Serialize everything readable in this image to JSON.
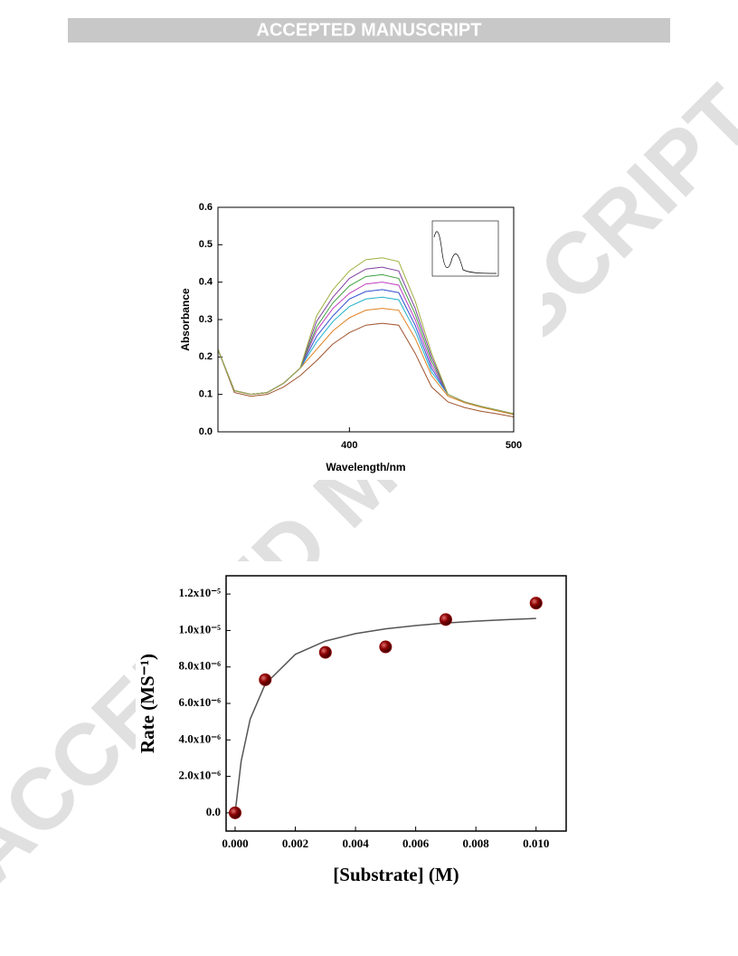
{
  "header": {
    "title": "ACCEPTED MANUSCRIPT"
  },
  "watermark": "ACCEPTED MANUSCRIPT",
  "chart_data": [
    {
      "type": "line",
      "x_label": "Wavelength/nm",
      "y_label": "Absorbance",
      "x": [
        320,
        330,
        340,
        350,
        360,
        370,
        380,
        390,
        400,
        410,
        420,
        430,
        440,
        450,
        460,
        470,
        480,
        490,
        500
      ],
      "xlim": [
        320,
        500
      ],
      "xticks": [
        400,
        500
      ],
      "ylim": [
        0,
        0.6
      ],
      "yticks": [
        {
          "value": 0,
          "label": "0.0"
        },
        0.1,
        0.2,
        0.3,
        0.4,
        0.5,
        0.6
      ],
      "series": [
        {
          "color": "#a0522d",
          "values": [
            0.22,
            0.105,
            0.095,
            0.1,
            0.12,
            0.15,
            0.19,
            0.235,
            0.265,
            0.285,
            0.29,
            0.285,
            0.21,
            0.12,
            0.08,
            0.065,
            0.055,
            0.048,
            0.04
          ]
        },
        {
          "color": "#e08020",
          "values": [
            0.22,
            0.11,
            0.1,
            0.105,
            0.13,
            0.17,
            0.22,
            0.27,
            0.305,
            0.325,
            0.33,
            0.325,
            0.25,
            0.15,
            0.095,
            0.078,
            0.066,
            0.056,
            0.046
          ]
        },
        {
          "color": "#20b0c8",
          "values": [
            0.22,
            0.11,
            0.1,
            0.105,
            0.13,
            0.17,
            0.24,
            0.295,
            0.335,
            0.355,
            0.36,
            0.353,
            0.27,
            0.16,
            0.1,
            0.08,
            0.068,
            0.058,
            0.048
          ]
        },
        {
          "color": "#3050d0",
          "values": [
            0.22,
            0.11,
            0.1,
            0.105,
            0.13,
            0.17,
            0.255,
            0.31,
            0.355,
            0.375,
            0.38,
            0.372,
            0.285,
            0.17,
            0.1,
            0.08,
            0.068,
            0.058,
            0.048
          ]
        },
        {
          "color": "#c040c0",
          "values": [
            0.22,
            0.11,
            0.1,
            0.105,
            0.13,
            0.17,
            0.27,
            0.33,
            0.37,
            0.395,
            0.4,
            0.392,
            0.3,
            0.18,
            0.1,
            0.08,
            0.068,
            0.058,
            0.048
          ]
        },
        {
          "color": "#40a040",
          "values": [
            0.22,
            0.11,
            0.1,
            0.105,
            0.13,
            0.17,
            0.28,
            0.345,
            0.39,
            0.415,
            0.42,
            0.41,
            0.315,
            0.19,
            0.1,
            0.08,
            0.068,
            0.058,
            0.048
          ]
        },
        {
          "color": "#8040a0",
          "values": [
            0.22,
            0.11,
            0.1,
            0.105,
            0.13,
            0.17,
            0.295,
            0.36,
            0.41,
            0.435,
            0.44,
            0.43,
            0.33,
            0.2,
            0.1,
            0.08,
            0.068,
            0.058,
            0.048
          ]
        },
        {
          "color": "#a0b040",
          "values": [
            0.22,
            0.11,
            0.1,
            0.105,
            0.13,
            0.17,
            0.31,
            0.38,
            0.43,
            0.46,
            0.465,
            0.455,
            0.35,
            0.21,
            0.1,
            0.08,
            0.068,
            0.058,
            0.048
          ]
        }
      ]
    },
    {
      "type": "scatter",
      "x_label": "[Substrate] (M)",
      "y_label": "Rate (MS⁻¹)",
      "x": [
        0,
        0.001,
        0.003,
        0.005,
        0.007,
        0.01
      ],
      "xlim": [
        -0.0003,
        0.011
      ],
      "xticks": [
        {
          "value": 0,
          "label": "0.000"
        },
        0.002,
        0.004,
        0.006,
        0.008,
        {
          "value": 0.01,
          "label": "0.010"
        }
      ],
      "ylim": [
        -1e-06,
        1.3e-05
      ],
      "yticks": [
        {
          "value": 0,
          "label": "0.0"
        },
        {
          "value": 2e-06,
          "label": "2.0x10⁻⁶"
        },
        {
          "value": 4e-06,
          "label": "4.0x10⁻⁶"
        },
        {
          "value": 6e-06,
          "label": "6.0x10⁻⁶"
        },
        {
          "value": 8e-06,
          "label": "8.0x10⁻⁶"
        },
        {
          "value": 1e-05,
          "label": "1.0x10⁻⁵"
        },
        {
          "value": 1.2e-05,
          "label": "1.2x10⁻⁵"
        }
      ],
      "series": [
        {
          "color": "#8b0000",
          "values": [
            0,
            7.3e-06,
            8.8e-06,
            9.1e-06,
            1.06e-05,
            1.15e-05
          ]
        },
        {
          "color": "#555555",
          "style": "line",
          "x": [
            0,
            0.0002,
            0.0005,
            0.001,
            0.002,
            0.003,
            0.004,
            0.005,
            0.006,
            0.007,
            0.008,
            0.009,
            0.01
          ],
          "values": [
            0,
            2.83e-06,
            5.14e-06,
            7.06e-06,
            8.69e-06,
            9.42e-06,
            9.83e-06,
            1.009e-05,
            1.027e-05,
            1.041e-05,
            1.051e-05,
            1.059e-05,
            1.066e-05
          ]
        }
      ]
    }
  ]
}
